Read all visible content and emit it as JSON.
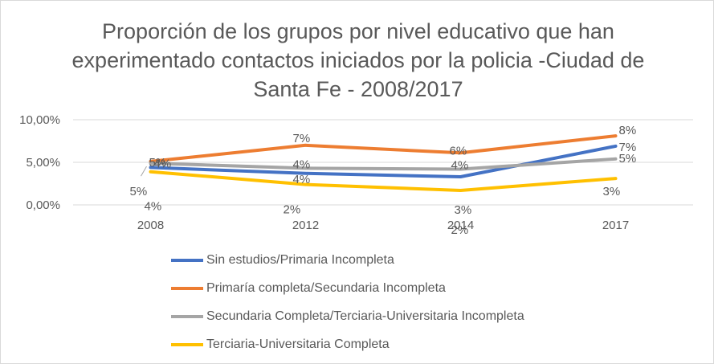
{
  "chart_data": {
    "type": "line",
    "title": "Proporción de los grupos por nivel educativo que han experimentado contactos iniciados por la policia -Ciudad de Santa Fe - 2008/2017",
    "categories": [
      "2008",
      "2012",
      "2014",
      "2017"
    ],
    "ylim": [
      0,
      10
    ],
    "ytick_labels": [
      "0,00%",
      "5,00%",
      "10,00%"
    ],
    "ytick_values": [
      0,
      5,
      10
    ],
    "grid": true,
    "legend_position": "bottom",
    "series": [
      {
        "name": "Sin estudios/Primaria Incompleta",
        "color": "#4472c4",
        "values": [
          4.4,
          3.7,
          3.3,
          6.9
        ],
        "labels": [
          "4%",
          "4%",
          "3%",
          "7%"
        ]
      },
      {
        "name": "Primaría completa/Secundaria Incompleta",
        "color": "#ed7d31",
        "values": [
          5.1,
          7.0,
          6.1,
          8.1
        ],
        "labels": [
          "5%",
          "7%",
          "6%",
          "8%"
        ]
      },
      {
        "name": "Secundaria Completa/Terciaria-Universitaria Incompleta",
        "color": "#a5a5a5",
        "values": [
          4.9,
          4.3,
          4.2,
          5.4
        ],
        "labels": [
          "5%",
          "4%",
          "4%",
          "5%"
        ]
      },
      {
        "name": "Terciaria-Universitaria Completa",
        "color": "#ffc000",
        "values": [
          3.9,
          2.4,
          1.7,
          3.1
        ],
        "labels": [
          "4%",
          "2%",
          "2%",
          "3%"
        ]
      }
    ]
  }
}
